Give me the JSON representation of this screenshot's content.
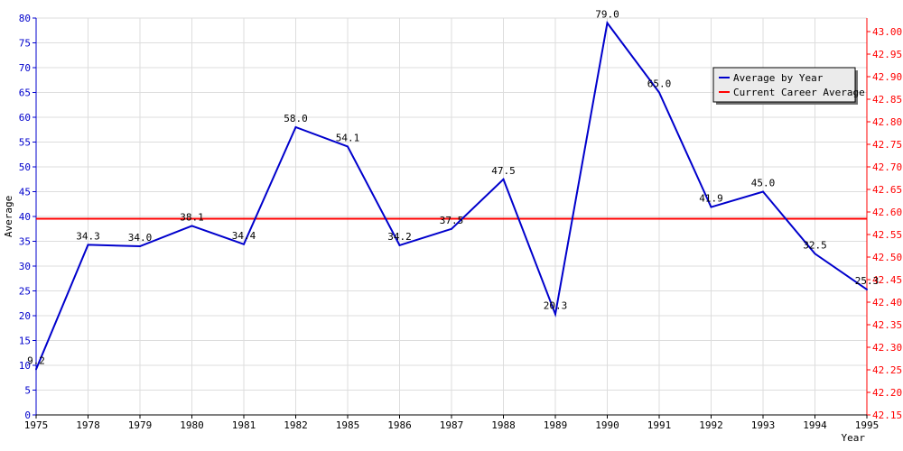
{
  "chart_data": {
    "type": "line",
    "title": "",
    "xlabel": "Year",
    "ylabel": "Average",
    "categories": [
      "1975",
      "1978",
      "1979",
      "1980",
      "1981",
      "1982",
      "1985",
      "1986",
      "1987",
      "1988",
      "1989",
      "1990",
      "1991",
      "1992",
      "1993",
      "1994",
      "1995"
    ],
    "series": [
      {
        "name": "Average by Year",
        "color": "#0000cc",
        "axis": "left",
        "values": [
          9.2,
          34.3,
          34.0,
          38.1,
          34.4,
          58.0,
          54.1,
          34.2,
          37.5,
          47.5,
          20.3,
          79.0,
          65.0,
          41.9,
          45.0,
          32.5,
          25.3
        ],
        "labels": [
          "9.2",
          "34.3",
          "34.0",
          "38.1",
          "34.4",
          "58.0",
          "54.1",
          "34.2",
          "37.5",
          "47.5",
          "20.3",
          "79.0",
          "65.0",
          "41.9",
          "45.0",
          "32.5",
          "25.3"
        ]
      },
      {
        "name": "Current Career Average",
        "color": "#ff0000",
        "axis": "right",
        "value": 42.585
      }
    ],
    "ylim": [
      0,
      80
    ],
    "yticks": [
      "0",
      "5",
      "10",
      "15",
      "20",
      "25",
      "30",
      "35",
      "40",
      "45",
      "50",
      "55",
      "60",
      "65",
      "70",
      "75",
      "80"
    ],
    "y2lim": [
      42.15,
      43.03
    ],
    "y2ticks": [
      "42.15",
      "42.20",
      "42.25",
      "42.30",
      "42.35",
      "42.40",
      "42.45",
      "42.50",
      "42.55",
      "42.60",
      "42.65",
      "42.70",
      "42.75",
      "42.80",
      "42.85",
      "42.90",
      "42.95",
      "43.00"
    ],
    "grid": true,
    "legend_position": "top-right",
    "left_axis_color": "#0000cc",
    "right_axis_color": "#ff0000"
  }
}
